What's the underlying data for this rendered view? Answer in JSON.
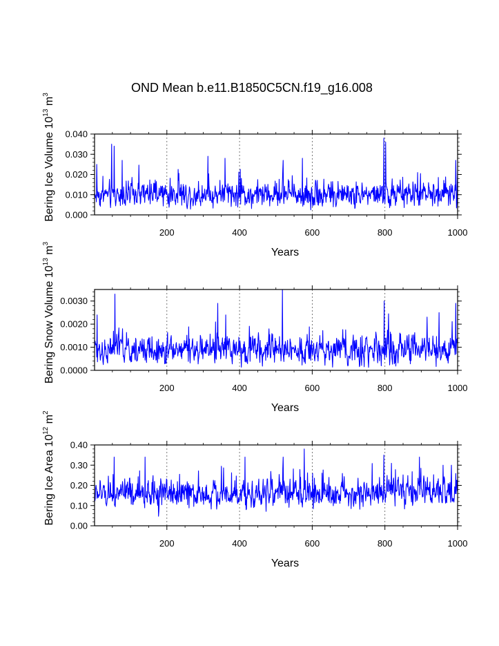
{
  "title": "OND Mean b.e11.B1850C5CN.f19_g16.008",
  "colors": {
    "series": "#0000ff",
    "axis": "#000000",
    "grid": "#555555"
  },
  "chart_data": [
    {
      "type": "line",
      "ylabel_main": "Bering Ice Volume 10",
      "ylabel_exp": "13",
      "ylabel_unit": " m",
      "ylabel_unit_exp": "3",
      "xlabel": "Years",
      "xlim": [
        1,
        1000
      ],
      "ylim": [
        0,
        0.04
      ],
      "xticks": [
        200,
        400,
        600,
        800,
        1000
      ],
      "xtick_labels": [
        "200",
        "400",
        "600",
        "800",
        "1000"
      ],
      "yticks": [
        0,
        0.01,
        0.02,
        0.03,
        0.04
      ],
      "ytick_labels": [
        "0.000",
        "0.010",
        "0.020",
        "0.030",
        "0.040"
      ],
      "grid_x": "dashed at major ticks",
      "series": {
        "x": [
          1,
          1000
        ],
        "mean": 0.01,
        "spread": 0.0045,
        "floor": 0.0005,
        "peaks": [
          [
            7,
            0.025
          ],
          [
            48,
            0.035
          ],
          [
            55,
            0.034
          ],
          [
            77,
            0.027
          ],
          [
            313,
            0.029
          ],
          [
            360,
            0.028
          ],
          [
            520,
            0.027
          ],
          [
            573,
            0.028
          ],
          [
            797,
            0.038
          ],
          [
            802,
            0.036
          ],
          [
            995,
            0.027
          ]
        ]
      }
    },
    {
      "type": "line",
      "ylabel_main": "Bering Snow Volume 10",
      "ylabel_exp": "13",
      "ylabel_unit": " m",
      "ylabel_unit_exp": "3",
      "xlabel": "Years",
      "xlim": [
        1,
        1000
      ],
      "ylim": [
        0,
        0.0035
      ],
      "xticks": [
        200,
        400,
        600,
        800,
        1000
      ],
      "xtick_labels": [
        "200",
        "400",
        "600",
        "800",
        "1000"
      ],
      "yticks": [
        0,
        0.001,
        0.002,
        0.003
      ],
      "ytick_labels": [
        "0.0000",
        "0.0010",
        "0.0020",
        "0.0030"
      ],
      "grid_x": "dashed at major ticks",
      "series": {
        "x": [
          1,
          1000
        ],
        "mean": 0.0009,
        "spread": 0.00045,
        "floor": 0.0001,
        "peaks": [
          [
            8,
            0.0024
          ],
          [
            57,
            0.0033
          ],
          [
            78,
            0.0018
          ],
          [
            340,
            0.0029
          ],
          [
            362,
            0.0024
          ],
          [
            518,
            0.0035
          ],
          [
            798,
            0.003
          ],
          [
            949,
            0.0025
          ],
          [
            995,
            0.0029
          ]
        ]
      }
    },
    {
      "type": "line",
      "ylabel_main": "Bering Ice Area 10",
      "ylabel_exp": "12",
      "ylabel_unit": " m",
      "ylabel_unit_exp": "2",
      "xlabel": "Years",
      "xlim": [
        1,
        1000
      ],
      "ylim": [
        0,
        0.4
      ],
      "xticks": [
        200,
        400,
        600,
        800,
        1000
      ],
      "xtick_labels": [
        "200",
        "400",
        "600",
        "800",
        "1000"
      ],
      "yticks": [
        0,
        0.1,
        0.2,
        0.3,
        0.4
      ],
      "ytick_labels": [
        "0.00",
        "0.10",
        "0.20",
        "0.30",
        "0.40"
      ],
      "grid_x": "dashed at major ticks",
      "series": {
        "x": [
          1,
          1000
        ],
        "mean": 0.16,
        "spread": 0.05,
        "floor": 0.02,
        "peaks": [
          [
            55,
            0.34
          ],
          [
            140,
            0.34
          ],
          [
            415,
            0.34
          ],
          [
            520,
            0.34
          ],
          [
            578,
            0.38
          ],
          [
            797,
            0.35
          ],
          [
            895,
            0.34
          ],
          [
            960,
            0.3
          ]
        ]
      }
    }
  ]
}
